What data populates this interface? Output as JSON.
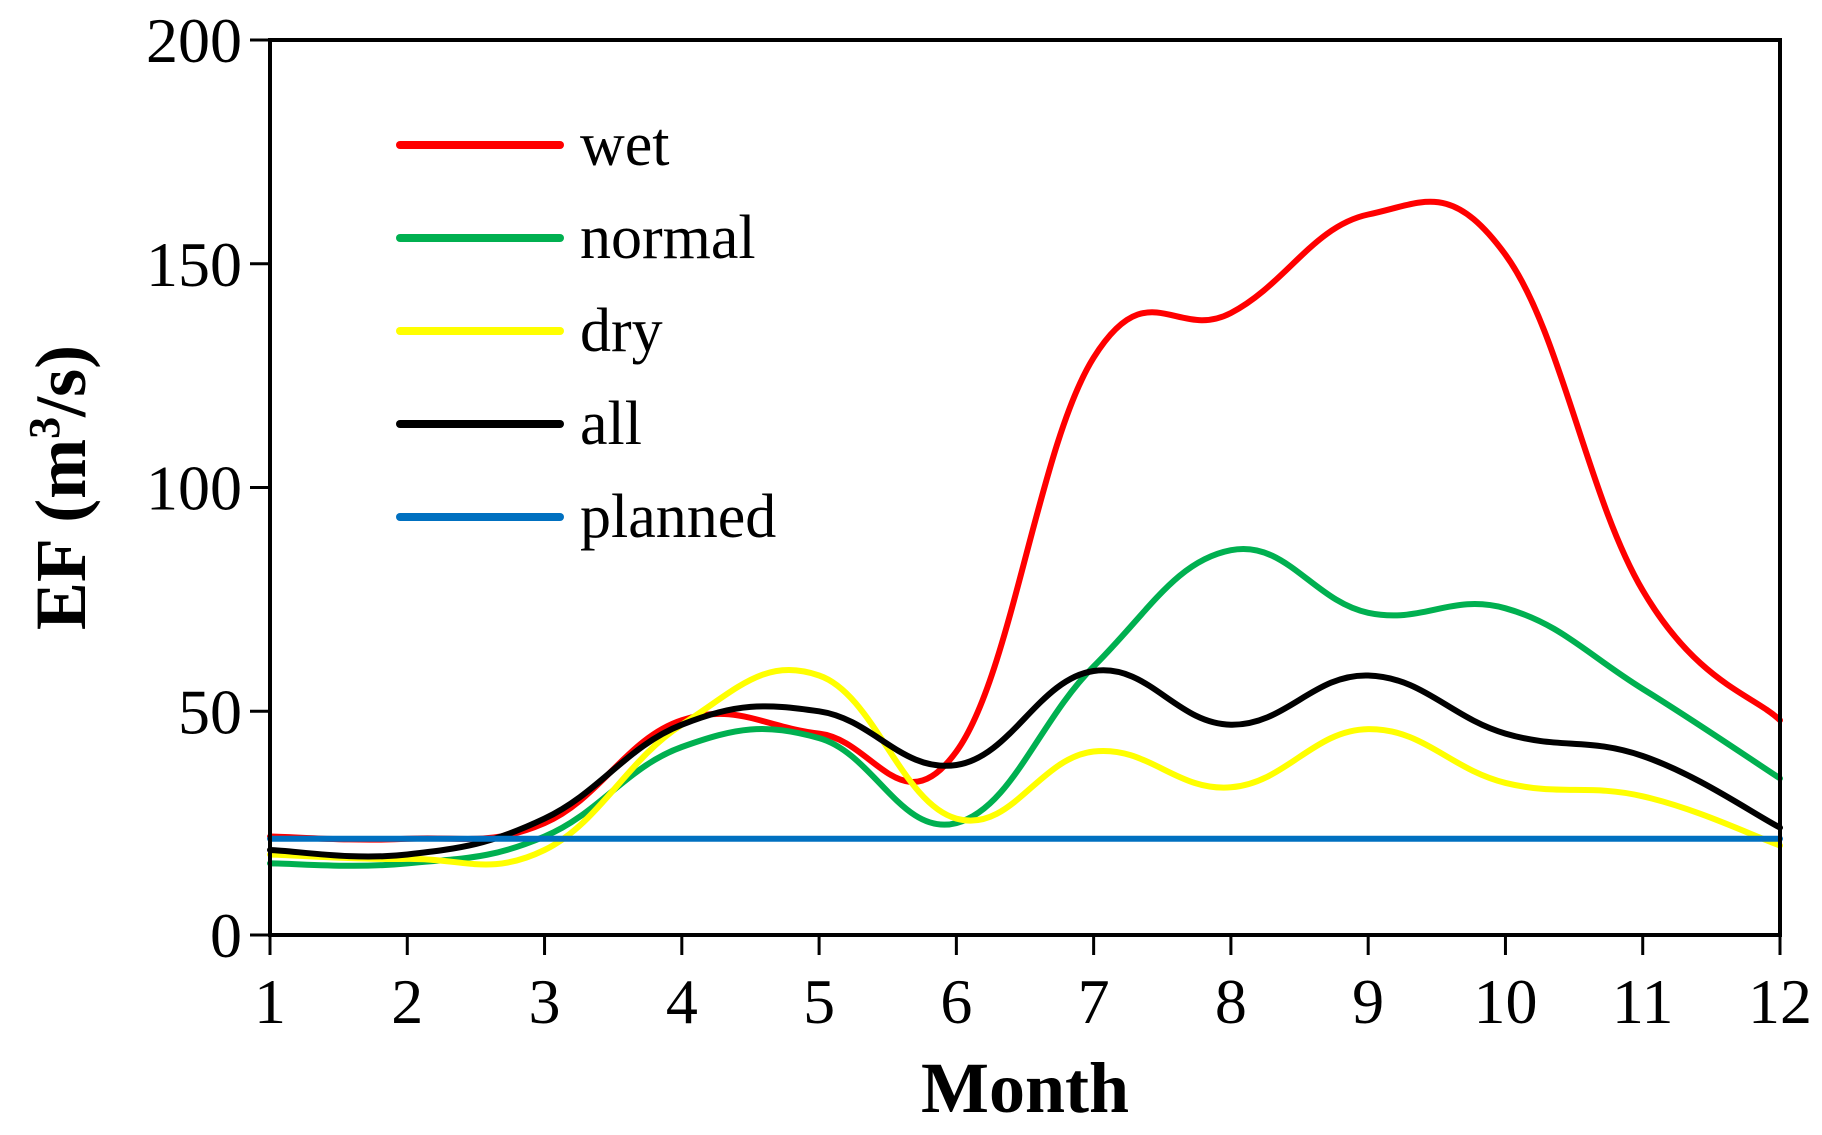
{
  "chart_data": {
    "type": "line",
    "title": "",
    "xlabel": "Month",
    "ylabel": "EF (m3/s)",
    "ylabel_parts": {
      "main": "EF (m",
      "superscript": "3",
      "tail": "/s)"
    },
    "x": [
      1,
      2,
      3,
      4,
      5,
      6,
      7,
      8,
      9,
      10,
      11,
      12
    ],
    "x_tick_labels": [
      "1",
      "2",
      "3",
      "4",
      "5",
      "6",
      "7",
      "8",
      "9",
      "10",
      "11",
      "12"
    ],
    "y_ticks": [
      0,
      50,
      100,
      150,
      200
    ],
    "y_tick_labels": [
      "0",
      "50",
      "100",
      "150",
      "200"
    ],
    "xlim": [
      1,
      12
    ],
    "ylim": [
      0,
      200
    ],
    "grid": false,
    "legend_position": "top-left",
    "smooth": true,
    "series": [
      {
        "name": "wet",
        "color": "#ff0000",
        "values": [
          22,
          21.5,
          25,
          48,
          45,
          41,
          129,
          139,
          161,
          152,
          77,
          48
        ]
      },
      {
        "name": "normal",
        "color": "#00b050",
        "values": [
          16,
          16,
          22,
          42,
          44,
          25,
          60,
          86,
          72,
          73,
          55,
          35
        ]
      },
      {
        "name": "dry",
        "color": "#ffff00",
        "values": [
          18,
          17,
          19,
          47,
          58,
          26,
          41,
          33,
          46,
          34,
          31,
          20
        ]
      },
      {
        "name": "all",
        "color": "#000000",
        "values": [
          19,
          18,
          26,
          47,
          50,
          38,
          59,
          47,
          58,
          45,
          40,
          24
        ]
      },
      {
        "name": "planned",
        "color": "#0070c0",
        "values": [
          21.5,
          21.5,
          21.5,
          21.5,
          21.5,
          21.5,
          21.5,
          21.5,
          21.5,
          21.5,
          21.5,
          21.5
        ]
      }
    ]
  }
}
